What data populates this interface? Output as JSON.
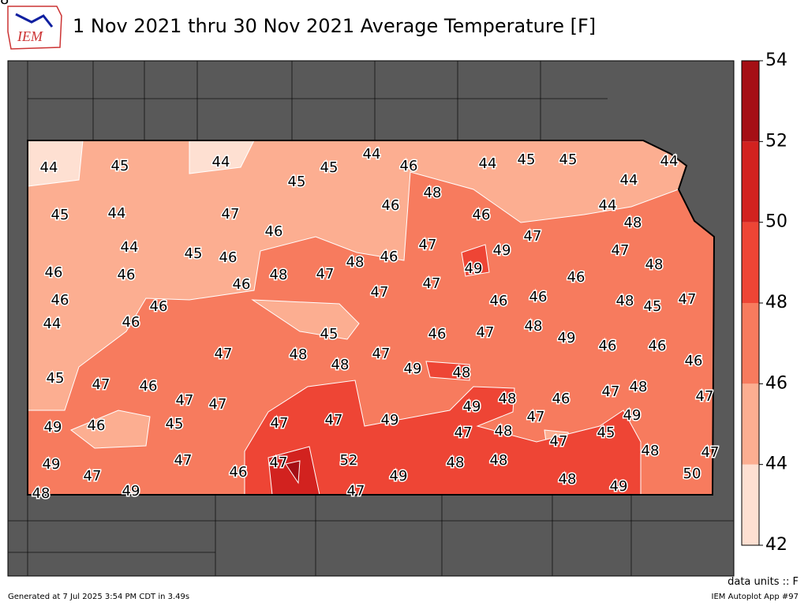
{
  "header": {
    "logo": "IEM",
    "title": "1 Nov 2021 thru 30 Nov 2021 Average Temperature [F]"
  },
  "map": {
    "labels": [
      44,
      45,
      44,
      45,
      45,
      44,
      46,
      44,
      45,
      45,
      44,
      44,
      45,
      44,
      47,
      46,
      48,
      46,
      46,
      44,
      48,
      47,
      44,
      45,
      46,
      46,
      46,
      46,
      48,
      47,
      48,
      46,
      47,
      49,
      49,
      46,
      47,
      48,
      46,
      44,
      46,
      46,
      47,
      47,
      46,
      46,
      48,
      45,
      47,
      45,
      46,
      47,
      48,
      49,
      46,
      46,
      46,
      47,
      48,
      48,
      47,
      49,
      48,
      45,
      47,
      46,
      47,
      47,
      49,
      48,
      46,
      47,
      48,
      47,
      49,
      46,
      45,
      47,
      47,
      49,
      47,
      48,
      47,
      47,
      45,
      49,
      49,
      47,
      47,
      46,
      47,
      52,
      49,
      48,
      48,
      48,
      48,
      47,
      48,
      49,
      47,
      49,
      50,
      48
    ],
    "colorbar": {
      "ticks": [
        42,
        44,
        46,
        48,
        50,
        52,
        54
      ],
      "colors": [
        "#fee0d2",
        "#fcae91",
        "#f77b5e",
        "#ee4535",
        "#d2221f",
        "#a50f15"
      ]
    },
    "units_note": "data units :: F"
  },
  "footer": {
    "generated": "Generated at 7 Jul 2025 3:54 PM CDT in 3.49s",
    "app": "IEM Autoplot App #97"
  }
}
